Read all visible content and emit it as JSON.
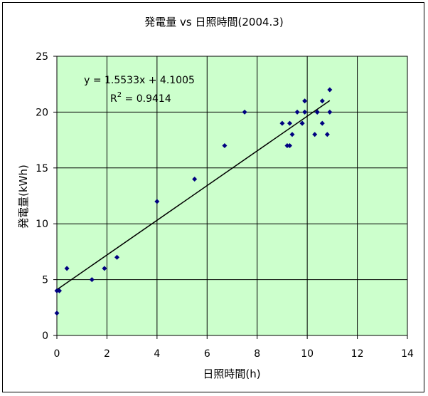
{
  "chart_data": {
    "type": "scatter",
    "title": "発電量 vs 日照時間(2004.3)",
    "xlabel": "日照時間(h)",
    "ylabel": "発電量(kWh)",
    "xlim": [
      0,
      14
    ],
    "ylim": [
      0,
      25
    ],
    "xticks": [
      "0",
      "2",
      "4",
      "6",
      "8",
      "10",
      "12",
      "14"
    ],
    "yticks": [
      "0",
      "5",
      "10",
      "15",
      "20",
      "25"
    ],
    "grid": true,
    "plot_background": "#CCFFCC",
    "marker_color": "#000080",
    "points": [
      {
        "x": 0.0,
        "y": 2
      },
      {
        "x": 0.0,
        "y": 4
      },
      {
        "x": 0.1,
        "y": 4
      },
      {
        "x": 0.4,
        "y": 6
      },
      {
        "x": 1.4,
        "y": 5
      },
      {
        "x": 1.9,
        "y": 6
      },
      {
        "x": 2.4,
        "y": 7
      },
      {
        "x": 4.0,
        "y": 12
      },
      {
        "x": 5.5,
        "y": 14
      },
      {
        "x": 6.7,
        "y": 17
      },
      {
        "x": 7.5,
        "y": 20
      },
      {
        "x": 9.0,
        "y": 19
      },
      {
        "x": 9.2,
        "y": 17
      },
      {
        "x": 9.3,
        "y": 17
      },
      {
        "x": 9.3,
        "y": 19
      },
      {
        "x": 9.4,
        "y": 18
      },
      {
        "x": 9.6,
        "y": 20
      },
      {
        "x": 9.8,
        "y": 19
      },
      {
        "x": 9.8,
        "y": 19
      },
      {
        "x": 9.9,
        "y": 21
      },
      {
        "x": 9.9,
        "y": 20
      },
      {
        "x": 10.3,
        "y": 18
      },
      {
        "x": 10.4,
        "y": 20
      },
      {
        "x": 10.4,
        "y": 20
      },
      {
        "x": 10.6,
        "y": 19
      },
      {
        "x": 10.6,
        "y": 21
      },
      {
        "x": 10.8,
        "y": 18
      },
      {
        "x": 10.9,
        "y": 20
      },
      {
        "x": 10.9,
        "y": 22
      }
    ],
    "trendline": {
      "slope": 1.5533,
      "intercept": 4.1005,
      "x_range": [
        0,
        10.9
      ],
      "equation_text": "y = 1.5533x + 4.1005",
      "r2_prefix": "R",
      "r2_sup": "2",
      "r2_value": " = 0.9414"
    }
  }
}
